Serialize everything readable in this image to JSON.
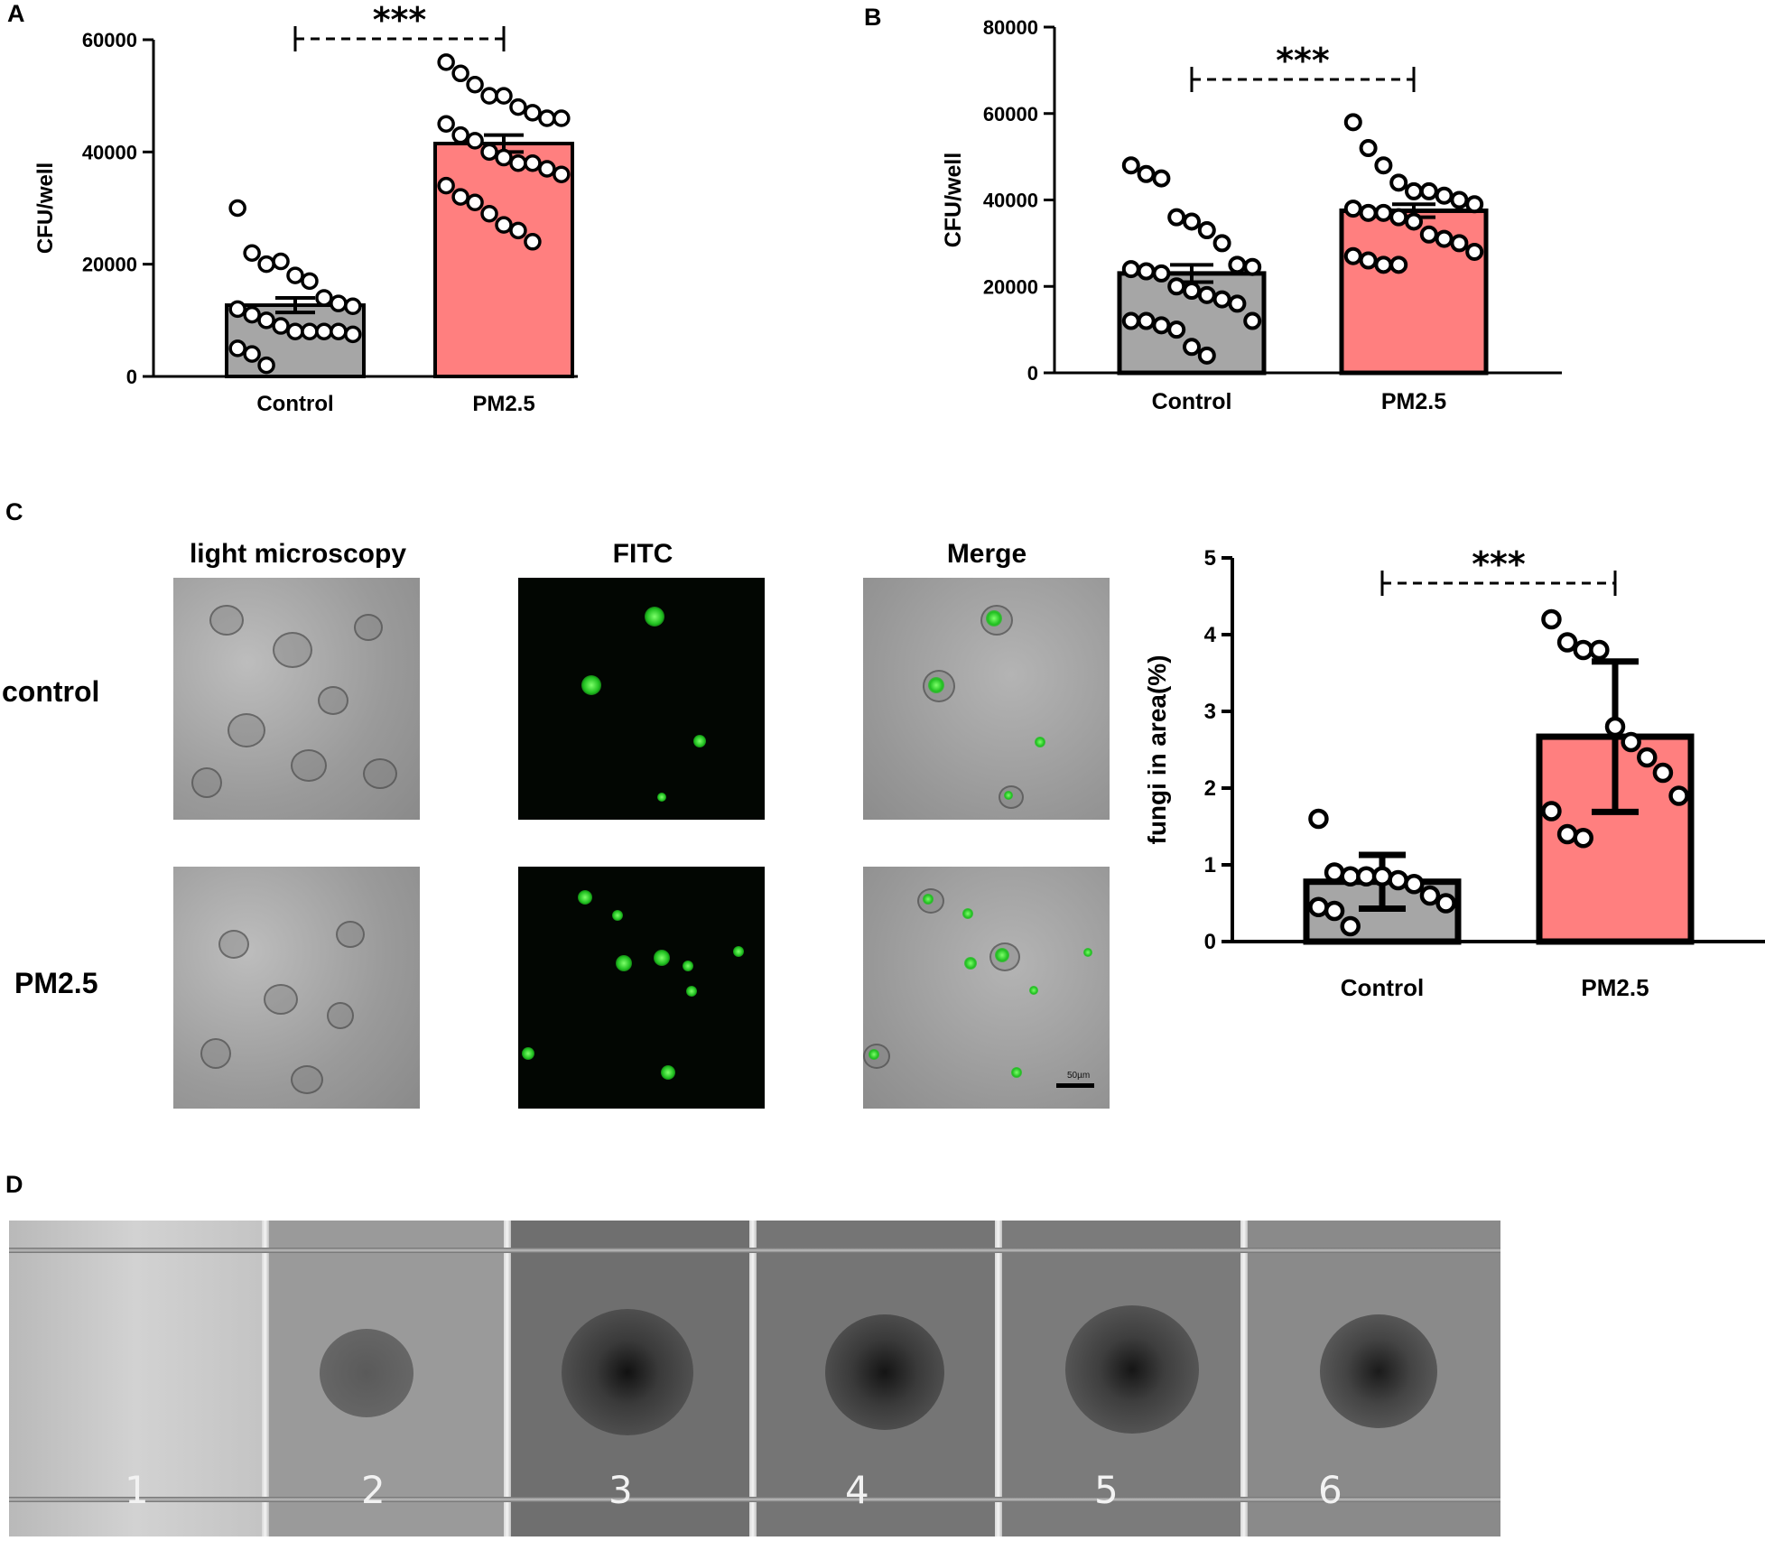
{
  "panels": {
    "A": {
      "letter": "A"
    },
    "B": {
      "letter": "B"
    },
    "C": {
      "letter": "C",
      "columns": [
        "light microscopy",
        "FITC",
        "Merge"
      ],
      "rows": [
        "control",
        "PM2.5"
      ],
      "scale_bar": "50µm"
    },
    "D": {
      "letter": "D",
      "wells": [
        "1",
        "2",
        "3",
        "4",
        "5",
        "6"
      ]
    }
  },
  "colors": {
    "control_bar": "#a6a6a6",
    "pm_bar": "#ff7f7f",
    "fitc_green": "#2ecc2e"
  },
  "chart_data": [
    {
      "id": "A",
      "type": "bar",
      "categories": [
        "Control",
        "PM2.5"
      ],
      "values": [
        12700,
        41500
      ],
      "error": [
        1300,
        1500
      ],
      "ylabel": "CFU/well",
      "ylim": [
        0,
        60000
      ],
      "yticks": [
        "0",
        "20000",
        "40000",
        "60000"
      ],
      "significance": "***",
      "points": [
        [
          30000,
          22000,
          20000,
          20500,
          18000,
          17000,
          14000,
          13000,
          12500,
          12000,
          11000,
          10000,
          9000,
          8000,
          8000,
          8000,
          8000,
          7500,
          5000,
          4000,
          2000
        ],
        [
          56000,
          54000,
          52000,
          50000,
          50000,
          48000,
          47000,
          46000,
          46000,
          45000,
          43000,
          42000,
          40000,
          39000,
          38000,
          38000,
          37000,
          36000,
          34000,
          32000,
          31000,
          29000,
          27000,
          26000,
          24000
        ]
      ],
      "grid": false
    },
    {
      "id": "B",
      "type": "bar",
      "categories": [
        "Control",
        "PM2.5"
      ],
      "values": [
        23000,
        37500
      ],
      "error": [
        2000,
        1500
      ],
      "ylabel": "CFU/well",
      "ylim": [
        0,
        80000
      ],
      "yticks": [
        "0",
        "20000",
        "40000",
        "60000",
        "80000"
      ],
      "significance": "***",
      "points": [
        [
          48000,
          46000,
          45000,
          36000,
          35000,
          33000,
          30000,
          25000,
          24500,
          24000,
          23500,
          23000,
          20000,
          19000,
          18000,
          17000,
          16000,
          12000,
          12000,
          12000,
          11000,
          10000,
          6000,
          4000
        ],
        [
          58000,
          52000,
          48000,
          44000,
          42000,
          42000,
          41000,
          40000,
          39000,
          38000,
          37000,
          37000,
          36000,
          35000,
          32000,
          31000,
          30000,
          28000,
          27000,
          26000,
          25000,
          25000
        ]
      ],
      "grid": false
    },
    {
      "id": "C",
      "type": "bar",
      "categories": [
        "Control",
        "PM2.5"
      ],
      "values": [
        0.78,
        2.67
      ],
      "error": [
        0.35,
        0.98
      ],
      "ylabel": "fungi in area(%)",
      "ylim": [
        0,
        5
      ],
      "yticks": [
        "0",
        "1",
        "2",
        "3",
        "4",
        "5"
      ],
      "significance": "***",
      "points": [
        [
          1.6,
          0.9,
          0.85,
          0.85,
          0.85,
          0.8,
          0.75,
          0.6,
          0.5,
          0.45,
          0.4,
          0.2
        ],
        [
          4.2,
          3.9,
          3.8,
          3.8,
          2.8,
          2.6,
          2.4,
          2.2,
          1.9,
          1.7,
          1.4,
          1.35
        ]
      ],
      "grid": false
    }
  ]
}
